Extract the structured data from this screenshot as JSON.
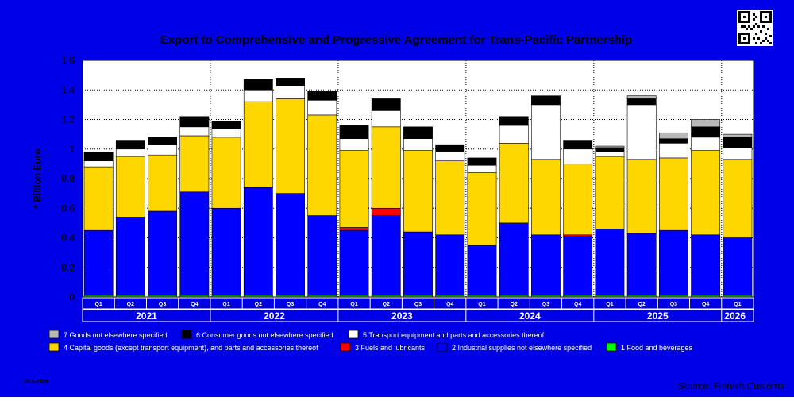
{
  "qr_code": "qr-code-icon",
  "source": "Source: Finnish Customs",
  "date": "29.6.2026",
  "colors": {
    "background": "#0000e6",
    "plot": "#ffffff",
    "c7": "#b8b8b8",
    "c6": "#000000",
    "c5": "#ffffff",
    "c4": "#ffd700",
    "c3": "#ff0000",
    "c2": "#0000ff",
    "c1": "#00ff00"
  },
  "chart_data": {
    "type": "bar",
    "stacked": true,
    "title": "Export to Comprehensive and Progressive Agreement for Trans-Pacific Partnership",
    "xlabel": "",
    "ylabel": "* Billion Euro",
    "ylim": [
      0,
      1.6
    ],
    "yticks": [
      "0",
      "0.2",
      "0.4",
      "0.6",
      "0.8",
      "1",
      "1.2",
      "1.4",
      "1.6"
    ],
    "grid": true,
    "legend_position": "bottom",
    "categories": [
      "Q1",
      "Q2",
      "Q3",
      "Q4",
      "Q1",
      "Q2",
      "Q3",
      "Q4",
      "Q1",
      "Q2",
      "Q3",
      "Q4",
      "Q1",
      "Q2",
      "Q3",
      "Q4",
      "Q1",
      "Q2",
      "Q3",
      "Q4",
      "Q1"
    ],
    "years": [
      {
        "label": "2021",
        "start": 0,
        "end": 3
      },
      {
        "label": "2022",
        "start": 4,
        "end": 7
      },
      {
        "label": "2023",
        "start": 8,
        "end": 11
      },
      {
        "label": "2024",
        "start": 12,
        "end": 15
      },
      {
        "label": "2025",
        "start": 16,
        "end": 19
      },
      {
        "label": "2026",
        "start": 20,
        "end": 20
      }
    ],
    "series": [
      {
        "name": "1 Food and beverages",
        "color_key": "c1",
        "values": [
          0.01,
          0.01,
          0.01,
          0.01,
          0.01,
          0.01,
          0.01,
          0.01,
          0.01,
          0.01,
          0.01,
          0.01,
          0.01,
          0.01,
          0.01,
          0.01,
          0.01,
          0.01,
          0.01,
          0.01,
          0.01
        ]
      },
      {
        "name": "2 Industrial supplies not elsewhere specified",
        "color_key": "c2",
        "values": [
          0.44,
          0.53,
          0.57,
          0.7,
          0.59,
          0.73,
          0.69,
          0.54,
          0.44,
          0.54,
          0.43,
          0.41,
          0.34,
          0.49,
          0.41,
          0.4,
          0.45,
          0.42,
          0.44,
          0.41,
          0.39
        ]
      },
      {
        "name": "3 Fuels and lubricants",
        "color_key": "c3",
        "values": [
          0,
          0,
          0,
          0,
          0,
          0,
          0,
          0,
          0.02,
          0.05,
          0,
          0,
          0,
          0,
          0,
          0.01,
          0,
          0,
          0,
          0,
          0
        ]
      },
      {
        "name": "4 Capital goods (except transport equipment), and parts and accessories thereof",
        "color_key": "c4",
        "values": [
          0.43,
          0.41,
          0.38,
          0.38,
          0.48,
          0.58,
          0.64,
          0.68,
          0.52,
          0.55,
          0.55,
          0.5,
          0.49,
          0.54,
          0.51,
          0.48,
          0.49,
          0.5,
          0.49,
          0.57,
          0.53
        ]
      },
      {
        "name": "5 Transport equipment and parts and accessories thereof",
        "color_key": "c5",
        "values": [
          0.04,
          0.05,
          0.07,
          0.06,
          0.06,
          0.08,
          0.09,
          0.1,
          0.08,
          0.11,
          0.08,
          0.06,
          0.05,
          0.12,
          0.37,
          0.1,
          0.03,
          0.37,
          0.1,
          0.09,
          0.08
        ]
      },
      {
        "name": "6 Consumer goods not elsewhere specified",
        "color_key": "c6",
        "values": [
          0.06,
          0.06,
          0.05,
          0.07,
          0.05,
          0.07,
          0.05,
          0.06,
          0.09,
          0.08,
          0.08,
          0.05,
          0.05,
          0.06,
          0.06,
          0.06,
          0.03,
          0.04,
          0.03,
          0.07,
          0.07
        ]
      },
      {
        "name": "7 Goods not elsewhere specified",
        "color_key": "c7",
        "values": [
          0,
          0,
          0,
          0,
          0,
          0,
          0,
          0,
          0,
          0,
          0,
          0,
          0,
          0,
          0,
          0,
          0.01,
          0.02,
          0.04,
          0.05,
          0.02
        ]
      }
    ],
    "legend_order": [
      6,
      5,
      4,
      3,
      2,
      1,
      0
    ]
  }
}
